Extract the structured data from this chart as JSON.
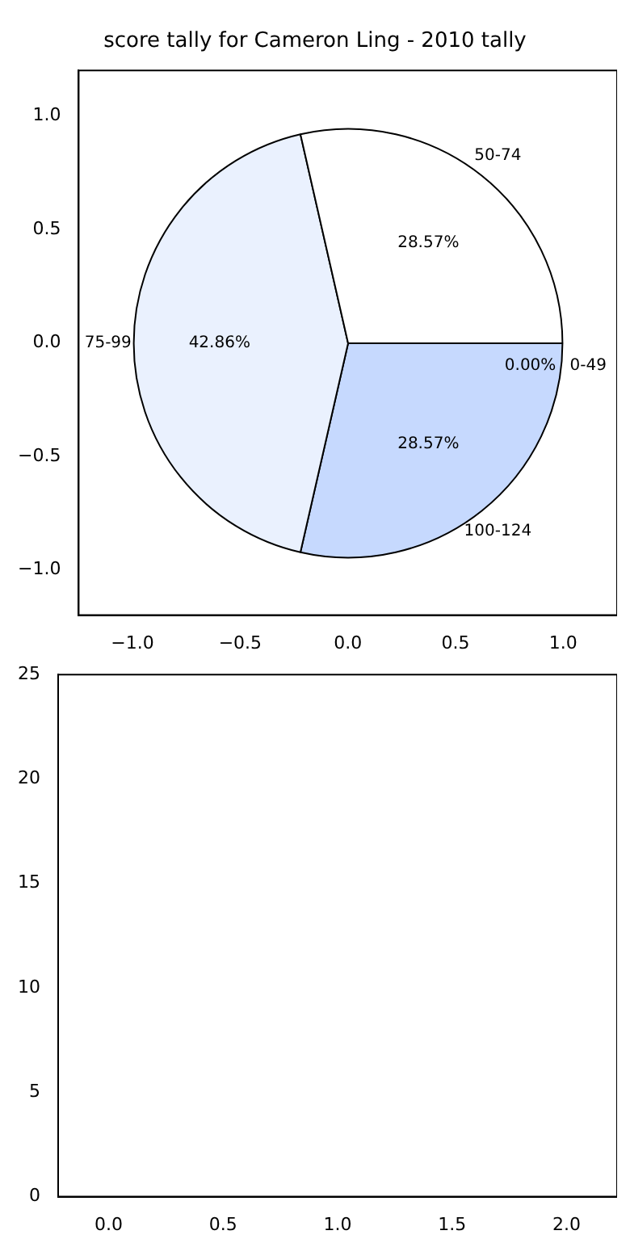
{
  "chart_data": [
    {
      "type": "scatter",
      "title": "score tally for Cameron Ling - 2010 tally",
      "xlim": [
        -1.25,
        1.25
      ],
      "ylim": [
        -1.2,
        1.2
      ],
      "xticks": [
        {
          "value": -1,
          "label": "−1.0"
        },
        {
          "value": -0.5,
          "label": "−0.5"
        },
        {
          "value": 0,
          "label": "0.0"
        },
        {
          "value": 0.5,
          "label": "0.5"
        },
        {
          "value": 1,
          "label": "1.0"
        }
      ],
      "yticks": [
        {
          "value": -1,
          "label": "−1.0"
        },
        {
          "value": -0.5,
          "label": "−0.5"
        },
        {
          "value": 0,
          "label": "0.0"
        },
        {
          "value": 0.5,
          "label": "0.5"
        },
        {
          "value": 1,
          "label": "1.0"
        }
      ]
    },
    {
      "type": "pie",
      "categories": [
        "100-124",
        "75-99",
        "50-74",
        "0-49"
      ],
      "values": [
        28.57,
        42.86,
        28.57,
        0
      ],
      "colors": [
        "#c6d9fe",
        "#eaf1fe",
        "#ffffff",
        "#ffffff"
      ],
      "value_labels": [
        "28.57%",
        "42.86%",
        "28.57%",
        "0.00%"
      ]
    },
    {
      "type": "bar",
      "xlim": [
        -0.22,
        2.22
      ],
      "ylim": [
        0,
        25
      ],
      "xticks": [
        {
          "value": 0,
          "label": "0.0"
        },
        {
          "value": 0.5,
          "label": "0.5"
        },
        {
          "value": 1,
          "label": "1.0"
        },
        {
          "value": 1.5,
          "label": "1.5"
        },
        {
          "value": 2,
          "label": "2.0"
        }
      ],
      "yticks": [
        0,
        5,
        10,
        15,
        20,
        25
      ]
    }
  ]
}
